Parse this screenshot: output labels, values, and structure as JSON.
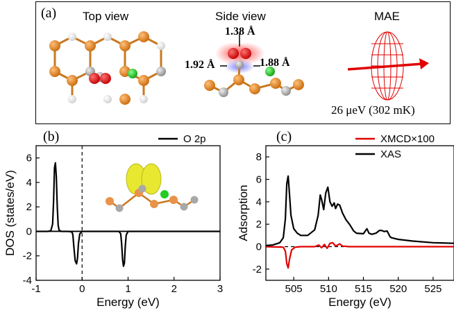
{
  "panel_a": {
    "label": "(a)",
    "top_view_title": "Top view",
    "side_view_title": "Side view",
    "mae_title": "MAE",
    "bond_top": "1.38 Å",
    "bond_left": "1.92 Å",
    "bond_right": "1.88 Å",
    "mae_value": "26 μeV (302 mK)"
  },
  "colors": {
    "oxygen": "#e01010",
    "boron": "#e88a1e",
    "carbon_gray": "#a8a8a8",
    "hydrogen": "#f0f0f0",
    "chlorine": "#22cc22",
    "xmcd": "#e00000",
    "xas": "#000000",
    "isosurface": "#e8e830"
  },
  "chart_data": [
    {
      "panel": "(b)",
      "type": "line",
      "xlabel": "Energy (eV)",
      "ylabel": "DOS (states/eV)",
      "xlim": [
        -1,
        3
      ],
      "ylim": [
        -4,
        7
      ],
      "xticks": [
        "-1",
        "0",
        "1",
        "2",
        "3"
      ],
      "yticks": [
        "-4",
        "-2",
        "0",
        "2",
        "4",
        "6"
      ],
      "legend": "top-right",
      "series": [
        {
          "name": "O 2p",
          "x": [
            -1.0,
            -0.75,
            -0.68,
            -0.64,
            -0.62,
            -0.6,
            -0.58,
            -0.56,
            -0.54,
            -0.52,
            -0.5,
            -0.45,
            -0.3,
            -0.22,
            -0.2,
            -0.18,
            -0.15,
            -0.12,
            -0.1,
            -0.08,
            -0.05,
            0.0,
            0.3,
            0.8,
            0.84,
            0.86,
            0.88,
            0.9,
            0.92,
            0.94,
            0.96,
            1.0,
            3.0
          ],
          "y": [
            0,
            0,
            0.05,
            0.6,
            2.5,
            5.2,
            5.6,
            4.5,
            2.0,
            0.5,
            0.1,
            0,
            0,
            -0.05,
            -0.3,
            -1.2,
            -2.4,
            -2.65,
            -2.2,
            -1.0,
            -0.2,
            0,
            0,
            0,
            -0.2,
            -1.0,
            -2.3,
            -2.85,
            -2.6,
            -1.2,
            -0.3,
            0,
            0
          ]
        }
      ]
    },
    {
      "panel": "(c)",
      "type": "line",
      "xlabel": "Energy (eV)",
      "ylabel": "Adsorption",
      "xlim": [
        501,
        528
      ],
      "ylim": [
        -3,
        9
      ],
      "xticks": [
        "505",
        "510",
        "515",
        "520",
        "525"
      ],
      "yticks": [
        "-2",
        "0",
        "2",
        "4",
        "6",
        "8"
      ],
      "legend": "top-right",
      "series": [
        {
          "name": "XMCD×100",
          "x": [
            501,
            503.5,
            503.8,
            504.0,
            504.2,
            504.4,
            504.7,
            505.2,
            506,
            508,
            508.6,
            509,
            509.4,
            509.8,
            510.2,
            510.6,
            511,
            511.6,
            512,
            513,
            528
          ],
          "y": [
            0,
            -0.05,
            -0.4,
            -1.5,
            -1.9,
            -1.1,
            -0.3,
            -0.05,
            0,
            0,
            0.15,
            -0.1,
            0.2,
            -0.15,
            0.3,
            0.35,
            0.05,
            0.25,
            0.05,
            0,
            0
          ]
        },
        {
          "name": "XAS",
          "x": [
            501,
            502,
            503,
            503.5,
            503.8,
            504.0,
            504.2,
            504.4,
            504.6,
            505,
            505.5,
            506,
            507,
            508,
            508.5,
            508.8,
            509.0,
            509.3,
            509.6,
            509.9,
            510.2,
            510.5,
            510.8,
            511.0,
            511.3,
            511.6,
            512,
            512.5,
            513,
            513.6,
            514,
            515,
            515.5,
            515.8,
            516.2,
            516.8,
            517.3,
            517.6,
            518,
            518.4,
            518.8,
            519,
            520,
            522,
            525,
            528
          ],
          "y": [
            0.1,
            0.15,
            0.35,
            0.8,
            2.5,
            5.6,
            6.3,
            4.6,
            2.8,
            1.6,
            1.2,
            1.0,
            1.0,
            1.5,
            2.8,
            4.6,
            4.2,
            3.3,
            4.8,
            5.3,
            4.0,
            3.6,
            3.9,
            3.4,
            3.8,
            3.7,
            3.0,
            2.4,
            2.0,
            1.4,
            1.2,
            1.15,
            1.6,
            1.2,
            1.1,
            1.2,
            1.45,
            1.45,
            1.35,
            1.4,
            0.9,
            0.8,
            0.65,
            0.5,
            0.35,
            0.3
          ]
        }
      ]
    }
  ]
}
